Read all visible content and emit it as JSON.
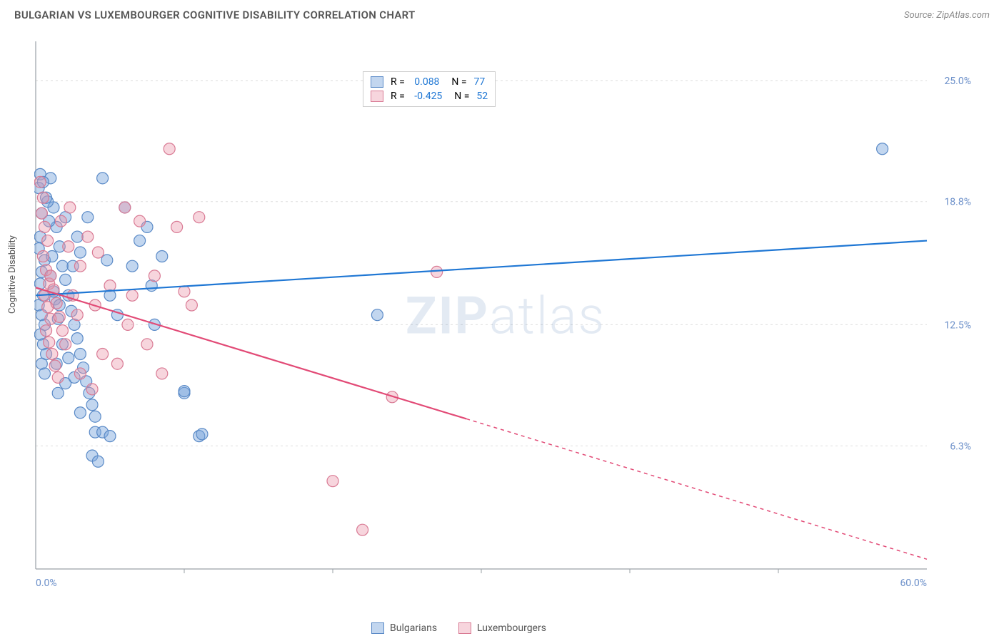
{
  "title": "BULGARIAN VS LUXEMBOURGER COGNITIVE DISABILITY CORRELATION CHART",
  "source": "Source: ZipAtlas.com",
  "watermark_bold": "ZIP",
  "watermark_rest": "atlas",
  "y_axis_label": "Cognitive Disability",
  "chart": {
    "type": "scatter",
    "xlim": [
      0,
      60
    ],
    "ylim": [
      0,
      27
    ],
    "x_ticks_labels": [
      {
        "pos": 0.0,
        "label": "0.0%"
      },
      {
        "pos": 60.0,
        "label": "60.0%"
      }
    ],
    "x_ticks_minor": [
      10,
      20,
      30,
      40,
      50
    ],
    "y_ticks": [
      {
        "pos": 6.3,
        "label": "6.3%"
      },
      {
        "pos": 12.5,
        "label": "12.5%"
      },
      {
        "pos": 18.8,
        "label": "18.8%"
      },
      {
        "pos": 25.0,
        "label": "25.0%"
      }
    ],
    "grid_color": "#dddddd",
    "axis_color": "#9aa0a6",
    "background": "#ffffff",
    "marker_radius": 8,
    "marker_stroke_width": 1.2,
    "line_width": 2.2,
    "series": [
      {
        "name": "Bulgarians",
        "fill": "rgba(120,165,220,0.45)",
        "stroke": "#5a8ac7",
        "line_color": "#1f77d4",
        "R": "0.088",
        "N": "77",
        "regression": {
          "x1": 0,
          "y1": 14.0,
          "x2": 60,
          "y2": 16.8,
          "dashed_from_x": null
        },
        "points": [
          [
            0.3,
            20.2
          ],
          [
            0.2,
            19.5
          ],
          [
            0.4,
            18.2
          ],
          [
            0.3,
            17.0
          ],
          [
            0.2,
            16.4
          ],
          [
            0.6,
            15.8
          ],
          [
            0.4,
            15.2
          ],
          [
            0.3,
            14.6
          ],
          [
            0.5,
            14.0
          ],
          [
            0.2,
            13.5
          ],
          [
            0.4,
            13.0
          ],
          [
            0.6,
            12.5
          ],
          [
            0.3,
            12.0
          ],
          [
            0.5,
            11.5
          ],
          [
            0.7,
            11.0
          ],
          [
            0.4,
            10.5
          ],
          [
            0.6,
            10.0
          ],
          [
            1.0,
            20.0
          ],
          [
            1.2,
            18.5
          ],
          [
            1.4,
            17.5
          ],
          [
            1.6,
            16.5
          ],
          [
            1.8,
            15.5
          ],
          [
            2.0,
            14.8
          ],
          [
            2.2,
            14.0
          ],
          [
            2.4,
            13.2
          ],
          [
            2.6,
            12.5
          ],
          [
            2.8,
            11.8
          ],
          [
            3.0,
            11.0
          ],
          [
            3.2,
            10.3
          ],
          [
            3.4,
            9.6
          ],
          [
            3.6,
            9.0
          ],
          [
            3.8,
            8.4
          ],
          [
            4.0,
            7.8
          ],
          [
            4.5,
            20.0
          ],
          [
            4.8,
            15.8
          ],
          [
            5.0,
            14.0
          ],
          [
            5.5,
            13.0
          ],
          [
            6.0,
            18.5
          ],
          [
            6.5,
            15.5
          ],
          [
            7.0,
            16.8
          ],
          [
            7.5,
            17.5
          ],
          [
            8.0,
            12.5
          ],
          [
            4.0,
            7.0
          ],
          [
            4.5,
            7.0
          ],
          [
            5.0,
            6.8
          ],
          [
            1.5,
            9.0
          ],
          [
            2.0,
            9.5
          ],
          [
            0.8,
            18.8
          ],
          [
            1.1,
            16.0
          ],
          [
            1.3,
            13.8
          ],
          [
            1.5,
            12.8
          ],
          [
            2.5,
            15.5
          ],
          [
            3.0,
            16.2
          ],
          [
            3.5,
            18.0
          ],
          [
            2.8,
            17.0
          ],
          [
            2.0,
            18.0
          ],
          [
            1.0,
            15.0
          ],
          [
            1.2,
            14.2
          ],
          [
            1.6,
            13.5
          ],
          [
            2.2,
            10.8
          ],
          [
            2.6,
            9.8
          ],
          [
            3.0,
            8.0
          ],
          [
            10.0,
            9.0
          ],
          [
            11.0,
            6.8
          ],
          [
            11.2,
            6.9
          ],
          [
            10.0,
            9.1
          ],
          [
            8.5,
            16.0
          ],
          [
            7.8,
            14.5
          ],
          [
            23.0,
            13.0
          ],
          [
            3.8,
            5.8
          ],
          [
            4.2,
            5.5
          ],
          [
            57.0,
            21.5
          ],
          [
            0.5,
            19.8
          ],
          [
            0.7,
            19.0
          ],
          [
            0.9,
            17.8
          ],
          [
            1.4,
            10.5
          ],
          [
            1.8,
            11.5
          ]
        ]
      },
      {
        "name": "Luxembourgers",
        "fill": "rgba(235,150,170,0.40)",
        "stroke": "#d97a94",
        "line_color": "#e24a76",
        "R": "-0.425",
        "N": "52",
        "regression": {
          "x1": 0,
          "y1": 14.4,
          "x2": 60,
          "y2": 0.5,
          "dashed_from_x": 29
        },
        "points": [
          [
            0.3,
            19.8
          ],
          [
            0.5,
            19.0
          ],
          [
            0.4,
            18.2
          ],
          [
            0.6,
            17.5
          ],
          [
            0.8,
            16.8
          ],
          [
            0.5,
            16.0
          ],
          [
            0.7,
            15.3
          ],
          [
            0.9,
            14.6
          ],
          [
            0.6,
            14.0
          ],
          [
            0.8,
            13.4
          ],
          [
            1.0,
            12.8
          ],
          [
            0.7,
            12.2
          ],
          [
            0.9,
            11.6
          ],
          [
            1.1,
            11.0
          ],
          [
            1.3,
            10.4
          ],
          [
            1.5,
            9.8
          ],
          [
            1.0,
            15.0
          ],
          [
            1.2,
            14.3
          ],
          [
            1.4,
            13.6
          ],
          [
            1.6,
            12.9
          ],
          [
            1.8,
            12.2
          ],
          [
            2.0,
            11.5
          ],
          [
            2.5,
            14.0
          ],
          [
            3.0,
            15.5
          ],
          [
            3.5,
            17.0
          ],
          [
            4.0,
            13.5
          ],
          [
            4.5,
            11.0
          ],
          [
            5.0,
            14.5
          ],
          [
            5.5,
            10.5
          ],
          [
            6.0,
            18.5
          ],
          [
            6.5,
            14.0
          ],
          [
            7.0,
            17.8
          ],
          [
            8.0,
            15.0
          ],
          [
            8.5,
            10.0
          ],
          [
            9.0,
            21.5
          ],
          [
            9.5,
            17.5
          ],
          [
            10.0,
            14.2
          ],
          [
            10.5,
            13.5
          ],
          [
            11.0,
            18.0
          ],
          [
            20.0,
            4.5
          ],
          [
            22.0,
            2.0
          ],
          [
            24.0,
            8.8
          ],
          [
            27.0,
            15.2
          ],
          [
            3.0,
            10.0
          ],
          [
            3.8,
            9.2
          ],
          [
            2.2,
            16.5
          ],
          [
            2.8,
            13.0
          ],
          [
            1.7,
            17.8
          ],
          [
            2.3,
            18.5
          ],
          [
            4.2,
            16.2
          ],
          [
            6.2,
            12.5
          ],
          [
            7.5,
            11.5
          ]
        ]
      }
    ]
  },
  "legend_bottom": [
    {
      "label": "Bulgarians",
      "fill": "rgba(120,165,220,0.45)",
      "stroke": "#5a8ac7"
    },
    {
      "label": "Luxembourgers",
      "fill": "rgba(235,150,170,0.40)",
      "stroke": "#d97a94"
    }
  ]
}
